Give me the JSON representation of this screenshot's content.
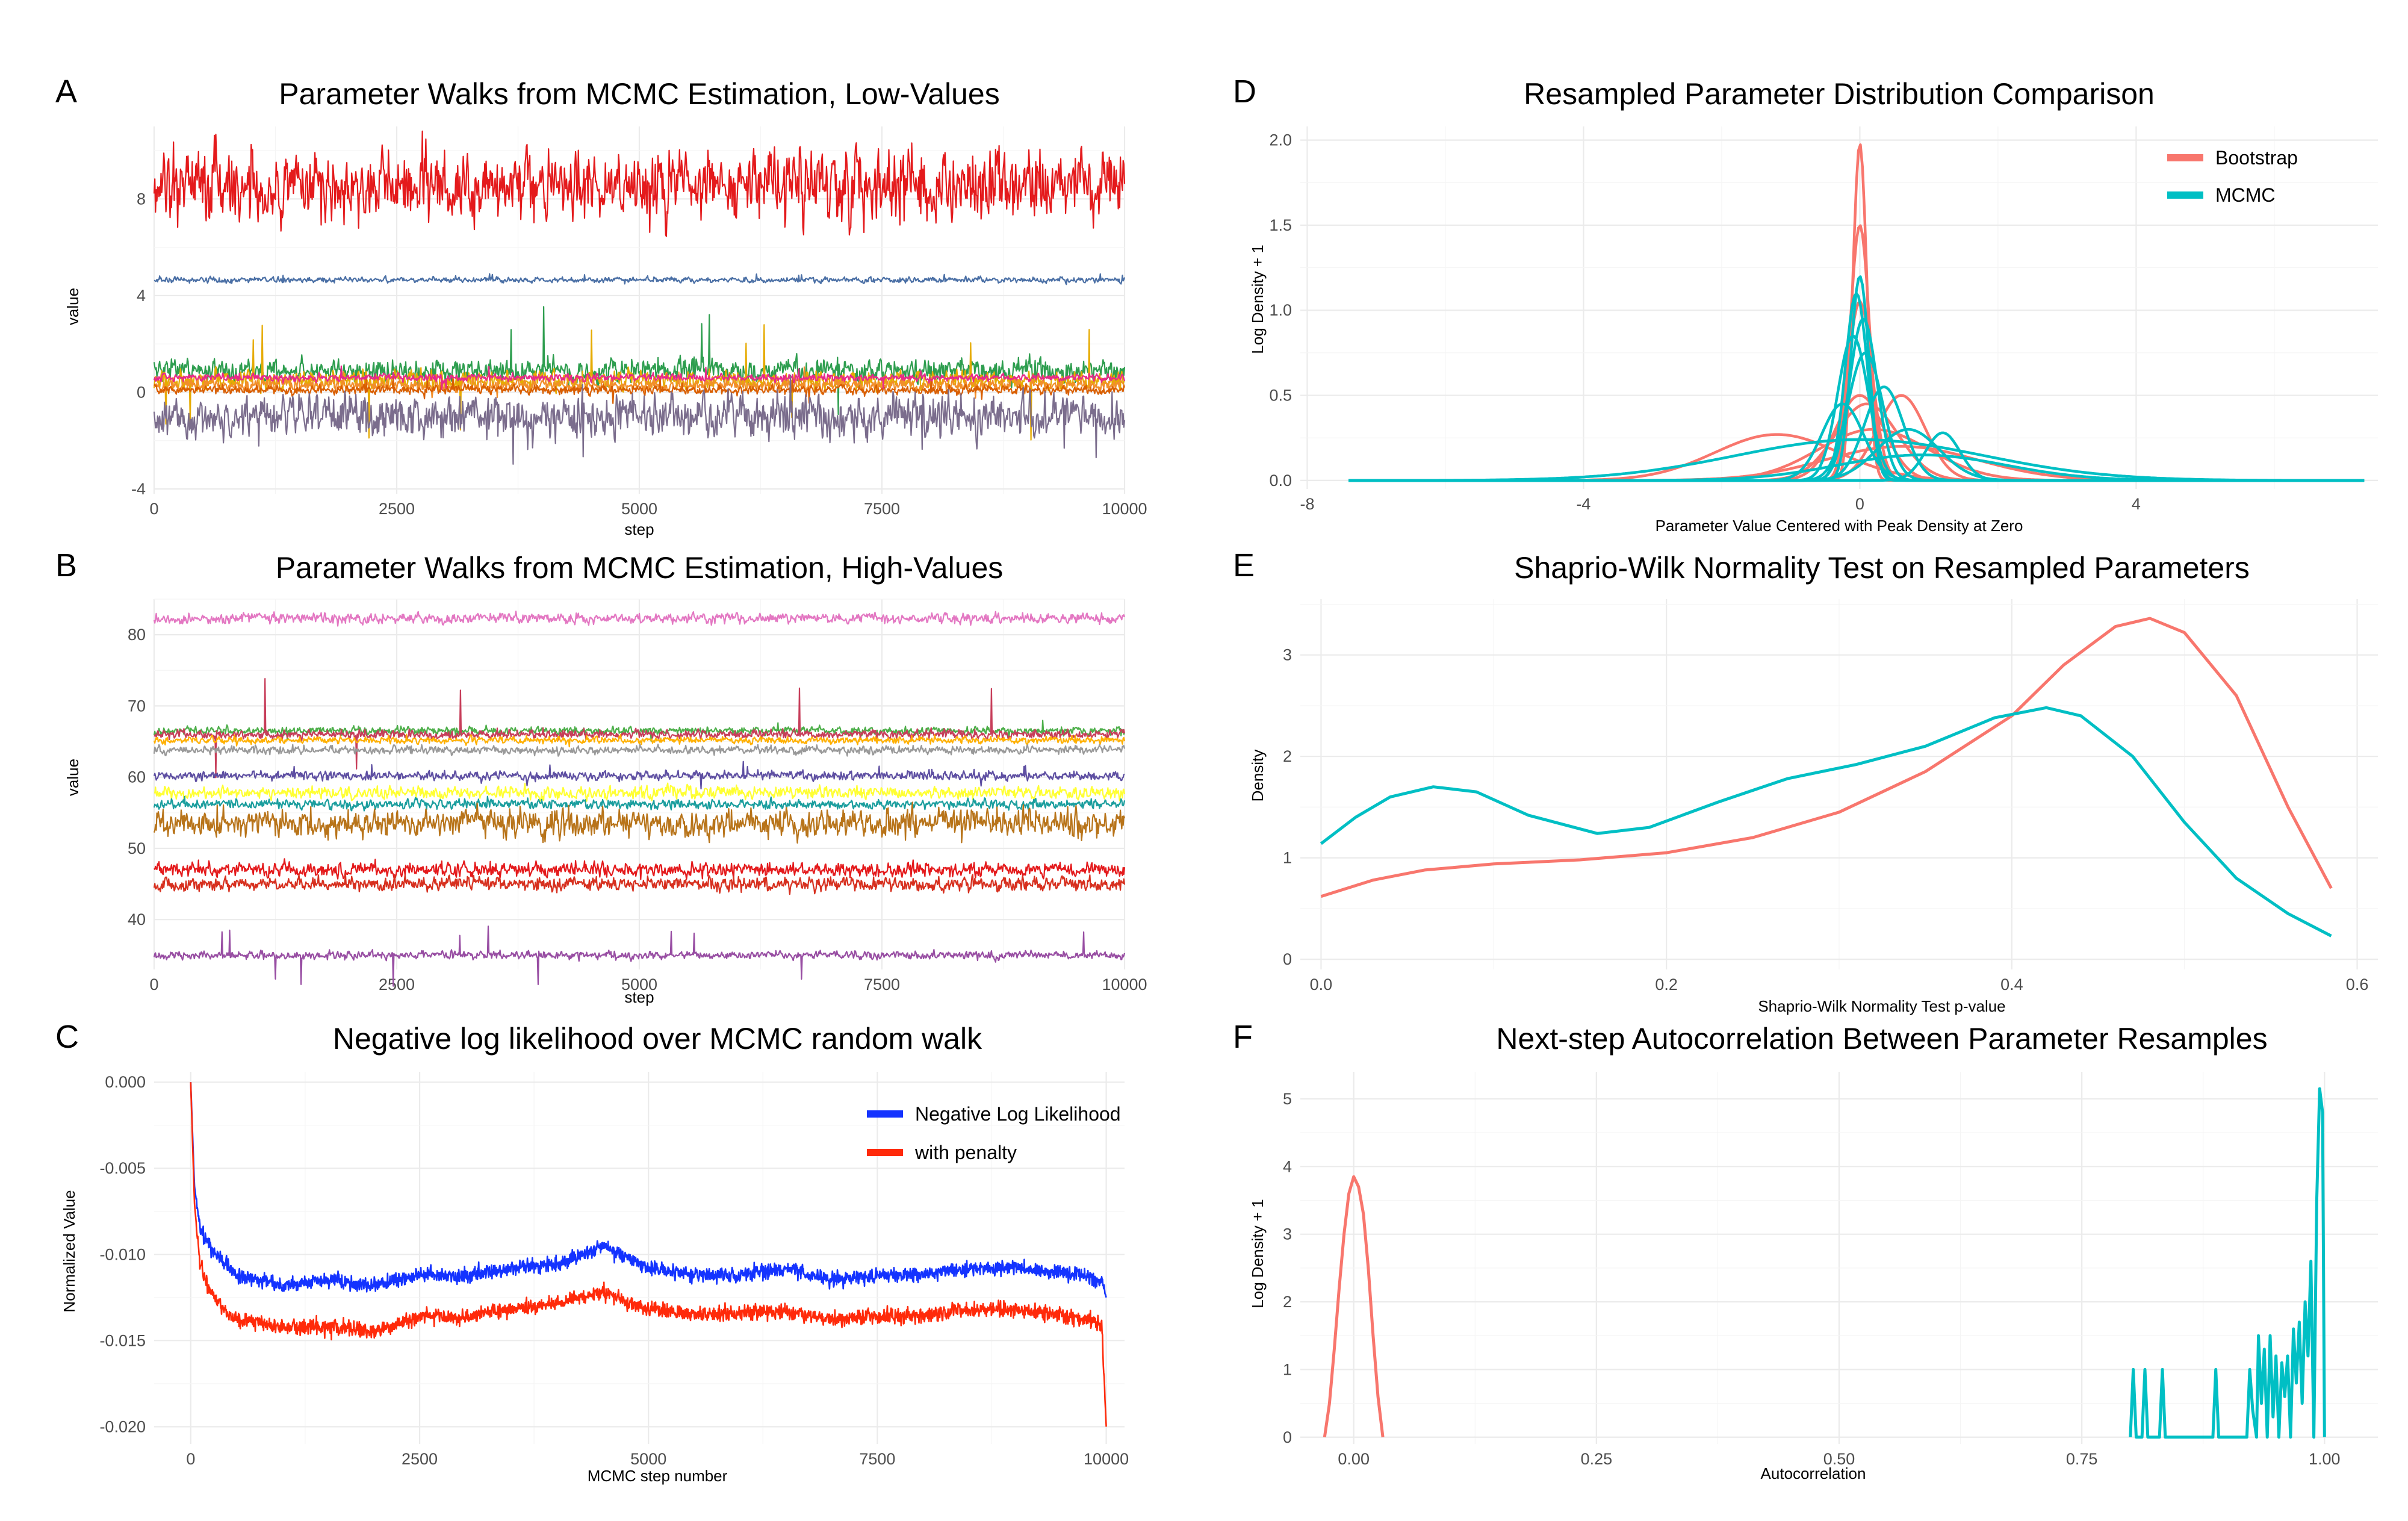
{
  "figure": {
    "panels": [
      "A",
      "B",
      "C",
      "D",
      "E",
      "F"
    ]
  },
  "chart_data": [
    {
      "id": "A",
      "panel_letter": "A",
      "type": "line",
      "title": "Parameter Walks from MCMC Estimation, Low-Values",
      "xlabel": "step",
      "ylabel": "value",
      "xlim": [
        0,
        10000
      ],
      "ylim": [
        -4.2,
        11
      ],
      "xticks": [
        0,
        2500,
        5000,
        7500,
        10000
      ],
      "xtick_labels": [
        "0",
        "2500",
        "5000",
        "7500",
        "10000"
      ],
      "yticks": [
        -4,
        0,
        4,
        8
      ],
      "ytick_labels": [
        "-4",
        "0",
        "4",
        "8"
      ],
      "grid": true,
      "legend": "none",
      "series": [
        {
          "color": "#e41a1c",
          "mean": 8.5,
          "noise": 0.9,
          "spike": 1.8
        },
        {
          "color": "#4a6fa5",
          "mean": 4.65,
          "noise": 0.07,
          "spike": 0.25
        },
        {
          "color": "#2e9e4f",
          "mean": 0.9,
          "noise": 0.3,
          "spike": 2.8
        },
        {
          "color": "#e6ab02",
          "mean": 0.5,
          "noise": 0.25,
          "spike": 2.5
        },
        {
          "color": "#f28e2b",
          "mean": 0.3,
          "noise": 0.15,
          "spike": 0.8
        },
        {
          "color": "#d95f02",
          "mean": 0.1,
          "noise": 0.12,
          "spike": 0.6
        },
        {
          "color": "#e7298a",
          "mean": 0.6,
          "noise": 0.1,
          "spike": 0.5
        },
        {
          "color": "#7b6d8d",
          "mean": -1.0,
          "noise": 0.55,
          "spike": 2.0
        }
      ]
    },
    {
      "id": "B",
      "panel_letter": "B",
      "type": "line",
      "title": "Parameter Walks from MCMC Estimation, High-Values",
      "xlabel": "step",
      "ylabel": "value",
      "xlim": [
        0,
        10000
      ],
      "ylim": [
        33,
        85
      ],
      "xticks": [
        0,
        2500,
        5000,
        7500,
        10000
      ],
      "xtick_labels": [
        "0",
        "2500",
        "5000",
        "7500",
        "10000"
      ],
      "yticks": [
        40,
        50,
        60,
        70,
        80
      ],
      "ytick_labels": [
        "40",
        "50",
        "60",
        "70",
        "80"
      ],
      "grid": true,
      "legend": "none",
      "series": [
        {
          "color": "#e377c2",
          "mean": 82.3,
          "noise": 0.45,
          "spike": 0.8
        },
        {
          "color": "#4daf4a",
          "mean": 66.5,
          "noise": 0.35,
          "spike": 1.5
        },
        {
          "color": "#c73e5a",
          "mean": 66.0,
          "noise": 0.4,
          "spike": 8.0
        },
        {
          "color": "#ffb000",
          "mean": 65.2,
          "noise": 0.3,
          "spike": 1.0
        },
        {
          "color": "#999999",
          "mean": 63.8,
          "noise": 0.35,
          "spike": 0.8
        },
        {
          "color": "#5e4fa2",
          "mean": 60.2,
          "noise": 0.4,
          "spike": 2.0
        },
        {
          "color": "#ffff33",
          "mean": 57.8,
          "noise": 0.55,
          "spike": 1.0
        },
        {
          "color": "#1b9e9e",
          "mean": 56.2,
          "noise": 0.4,
          "spike": 1.2
        },
        {
          "color": "#b8741a",
          "mean": 53.5,
          "noise": 1.2,
          "spike": 3.0
        },
        {
          "color": "#e41a1c",
          "mean": 47.0,
          "noise": 0.6,
          "spike": 1.5
        },
        {
          "color": "#d7301f",
          "mean": 45.0,
          "noise": 0.6,
          "spike": 1.5
        },
        {
          "color": "#984ea3",
          "mean": 35.0,
          "noise": 0.35,
          "spike": 4.5
        }
      ]
    },
    {
      "id": "C",
      "panel_letter": "C",
      "type": "line",
      "title": "Negative log likelihood over MCMC random walk",
      "xlabel": "MCMC step number",
      "ylabel": "Normalized Value",
      "xlim": [
        -400,
        10200
      ],
      "ylim": [
        -0.021,
        0.0006
      ],
      "xticks": [
        0,
        2500,
        5000,
        7500,
        10000
      ],
      "xtick_labels": [
        "0",
        "2500",
        "5000",
        "7500",
        "10000"
      ],
      "yticks": [
        0,
        -0.005,
        -0.01,
        -0.015,
        -0.02
      ],
      "ytick_labels": [
        "0.000",
        "-0.005",
        "-0.010",
        "-0.015",
        "-0.020"
      ],
      "grid": true,
      "legend": "top-right",
      "series": [
        {
          "name": "Negative Log Likelihood",
          "color": "#1433ff",
          "points": [
            [
              0,
              0
            ],
            [
              40,
              -0.006
            ],
            [
              100,
              -0.0085
            ],
            [
              200,
              -0.0095
            ],
            [
              500,
              -0.0112
            ],
            [
              1000,
              -0.0118
            ],
            [
              1500,
              -0.0115
            ],
            [
              2000,
              -0.0118
            ],
            [
              2500,
              -0.0112
            ],
            [
              3000,
              -0.0113
            ],
            [
              3500,
              -0.0108
            ],
            [
              4000,
              -0.0106
            ],
            [
              4500,
              -0.0095
            ],
            [
              5000,
              -0.0108
            ],
            [
              5500,
              -0.0112
            ],
            [
              6000,
              -0.0112
            ],
            [
              6500,
              -0.0108
            ],
            [
              7000,
              -0.0115
            ],
            [
              7500,
              -0.0112
            ],
            [
              8000,
              -0.0112
            ],
            [
              8500,
              -0.0108
            ],
            [
              9000,
              -0.0108
            ],
            [
              9500,
              -0.011
            ],
            [
              9950,
              -0.0115
            ],
            [
              10000,
              -0.0125
            ]
          ]
        },
        {
          "name": "with penalty",
          "color": "#ff2a0a",
          "points": [
            [
              0,
              0
            ],
            [
              40,
              -0.007
            ],
            [
              100,
              -0.0105
            ],
            [
              200,
              -0.0122
            ],
            [
              500,
              -0.0138
            ],
            [
              1000,
              -0.0142
            ],
            [
              1500,
              -0.0142
            ],
            [
              2000,
              -0.0145
            ],
            [
              2500,
              -0.0136
            ],
            [
              3000,
              -0.0136
            ],
            [
              3500,
              -0.0132
            ],
            [
              4000,
              -0.0128
            ],
            [
              4500,
              -0.0122
            ],
            [
              5000,
              -0.0132
            ],
            [
              5500,
              -0.0135
            ],
            [
              6000,
              -0.0134
            ],
            [
              6500,
              -0.0133
            ],
            [
              7000,
              -0.0138
            ],
            [
              7500,
              -0.0136
            ],
            [
              8000,
              -0.0135
            ],
            [
              8500,
              -0.0132
            ],
            [
              9000,
              -0.0132
            ],
            [
              9500,
              -0.0135
            ],
            [
              9950,
              -0.014
            ],
            [
              10000,
              -0.02
            ]
          ]
        }
      ]
    },
    {
      "id": "D",
      "panel_letter": "D",
      "type": "line",
      "title": "Resampled Parameter Distribution Comparison",
      "xlabel": "Parameter Value Centered with Peak Density at Zero",
      "ylabel": "Log Density + 1",
      "xlim": [
        -8.1,
        7.5
      ],
      "ylim": [
        -0.05,
        2.08
      ],
      "xticks": [
        -8,
        -4,
        0,
        4
      ],
      "xtick_labels": [
        "-8",
        "-4",
        "0",
        "4"
      ],
      "yticks": [
        0,
        0.5,
        1,
        1.5,
        2
      ],
      "ytick_labels": [
        "0.0",
        "0.5",
        "1.0",
        "1.5",
        "2.0"
      ],
      "grid": true,
      "legend": "top-right",
      "legend_entries": [
        "Bootstrap",
        "MCMC"
      ],
      "series": [
        {
          "name": "Bootstrap",
          "color": "#f8766d",
          "curves": [
            {
              "peak": 1.98,
              "w": 0.1,
              "shift": 0
            },
            {
              "peak": 1.5,
              "w": 0.14,
              "shift": 0
            },
            {
              "peak": 1.05,
              "w": 0.18,
              "shift": 0
            },
            {
              "peak": 0.5,
              "w": 0.35,
              "shift": 0
            },
            {
              "peak": 0.45,
              "w": 0.45,
              "shift": 0.1
            },
            {
              "peak": 0.27,
              "w": 0.9,
              "shift": -1.2
            },
            {
              "peak": 0.5,
              "w": 0.35,
              "shift": 0.6
            },
            {
              "peak": 0.3,
              "w": 0.8,
              "shift": 0.2
            },
            {
              "peak": 0.2,
              "w": 1.1,
              "shift": 0.6
            }
          ]
        },
        {
          "name": "MCMC",
          "color": "#00bfc4",
          "curves": [
            {
              "peak": 1.2,
              "w": 0.13,
              "shift": 0
            },
            {
              "peak": 1.1,
              "w": 0.16,
              "shift": -0.05
            },
            {
              "peak": 0.95,
              "w": 0.2,
              "shift": 0.05
            },
            {
              "peak": 0.85,
              "w": 0.22,
              "shift": -0.1
            },
            {
              "peak": 0.75,
              "w": 0.25,
              "shift": 0.08
            },
            {
              "peak": 0.55,
              "w": 0.28,
              "shift": 0.35
            },
            {
              "peak": 0.45,
              "w": 0.3,
              "shift": -0.25
            },
            {
              "peak": 0.28,
              "w": 0.25,
              "shift": 1.2
            },
            {
              "peak": 0.3,
              "w": 0.45,
              "shift": 0.7
            },
            {
              "peak": 0.24,
              "w": 1.8,
              "shift": 0
            },
            {
              "peak": 0.15,
              "w": 1.2,
              "shift": 0.9
            }
          ]
        }
      ]
    },
    {
      "id": "E",
      "panel_letter": "E",
      "type": "line",
      "title": "Shaprio-Wilk Normality Test on Resampled Parameters",
      "xlabel": "Shaprio-Wilk Normality Test p-value",
      "ylabel": "Density",
      "xlim": [
        -0.012,
        0.612
      ],
      "ylim": [
        -0.1,
        3.55
      ],
      "xticks": [
        0,
        0.2,
        0.4,
        0.6
      ],
      "xtick_labels": [
        "0.0",
        "0.2",
        "0.4",
        "0.6"
      ],
      "yticks": [
        0,
        1,
        2,
        3
      ],
      "ytick_labels": [
        "0",
        "1",
        "2",
        "3"
      ],
      "grid": true,
      "legend": "none",
      "series": [
        {
          "name": "Bootstrap",
          "color": "#f8766d",
          "points": [
            [
              0,
              0.62
            ],
            [
              0.03,
              0.78
            ],
            [
              0.06,
              0.88
            ],
            [
              0.1,
              0.94
            ],
            [
              0.15,
              0.98
            ],
            [
              0.2,
              1.05
            ],
            [
              0.25,
              1.2
            ],
            [
              0.3,
              1.45
            ],
            [
              0.35,
              1.85
            ],
            [
              0.4,
              2.4
            ],
            [
              0.43,
              2.9
            ],
            [
              0.46,
              3.28
            ],
            [
              0.48,
              3.36
            ],
            [
              0.5,
              3.22
            ],
            [
              0.53,
              2.6
            ],
            [
              0.56,
              1.5
            ],
            [
              0.585,
              0.7
            ]
          ]
        },
        {
          "name": "MCMC",
          "color": "#00bfc4",
          "points": [
            [
              0,
              1.14
            ],
            [
              0.02,
              1.4
            ],
            [
              0.04,
              1.6
            ],
            [
              0.065,
              1.7
            ],
            [
              0.09,
              1.65
            ],
            [
              0.12,
              1.42
            ],
            [
              0.16,
              1.24
            ],
            [
              0.19,
              1.3
            ],
            [
              0.23,
              1.55
            ],
            [
              0.27,
              1.78
            ],
            [
              0.31,
              1.92
            ],
            [
              0.35,
              2.1
            ],
            [
              0.39,
              2.38
            ],
            [
              0.42,
              2.48
            ],
            [
              0.44,
              2.4
            ],
            [
              0.47,
              2.0
            ],
            [
              0.5,
              1.35
            ],
            [
              0.53,
              0.8
            ],
            [
              0.56,
              0.45
            ],
            [
              0.585,
              0.23
            ]
          ]
        }
      ]
    },
    {
      "id": "F",
      "panel_letter": "F",
      "type": "line",
      "title": "Next-step Autocorrelation Between Parameter Resamples",
      "xlabel": "Autocorrelation",
      "ylabel": "Log Density + 1",
      "xlim": [
        -0.055,
        1.055
      ],
      "ylim": [
        -0.1,
        5.4
      ],
      "xticks": [
        0,
        0.25,
        0.5,
        0.75,
        1
      ],
      "xtick_labels": [
        "0.00",
        "0.25",
        "0.50",
        "0.75",
        "1.00"
      ],
      "yticks": [
        0,
        1,
        2,
        3,
        4,
        5
      ],
      "ytick_labels": [
        "0",
        "1",
        "2",
        "3",
        "4",
        "5"
      ],
      "grid": true,
      "legend": "none",
      "series": [
        {
          "name": "Bootstrap",
          "color": "#f8766d",
          "points": [
            [
              -0.03,
              0
            ],
            [
              -0.025,
              0.5
            ],
            [
              -0.02,
              1.3
            ],
            [
              -0.015,
              2.2
            ],
            [
              -0.01,
              3.0
            ],
            [
              -0.005,
              3.6
            ],
            [
              0,
              3.85
            ],
            [
              0.005,
              3.7
            ],
            [
              0.01,
              3.3
            ],
            [
              0.015,
              2.5
            ],
            [
              0.02,
              1.5
            ],
            [
              0.025,
              0.6
            ],
            [
              0.03,
              0
            ]
          ]
        },
        {
          "name": "MCMC",
          "color": "#00bfc4",
          "points": [
            [
              0.8,
              0
            ],
            [
              0.803,
              1.0
            ],
            [
              0.806,
              0
            ],
            [
              0.812,
              0
            ],
            [
              0.815,
              1.0
            ],
            [
              0.818,
              0
            ],
            [
              0.83,
              0
            ],
            [
              0.833,
              1.0
            ],
            [
              0.836,
              0
            ],
            [
              0.885,
              0
            ],
            [
              0.888,
              1.0
            ],
            [
              0.891,
              0
            ],
            [
              0.92,
              0
            ],
            [
              0.923,
              1.0
            ],
            [
              0.926,
              0.4
            ],
            [
              0.93,
              0
            ],
            [
              0.932,
              1.5
            ],
            [
              0.935,
              0.5
            ],
            [
              0.938,
              1.3
            ],
            [
              0.941,
              0
            ],
            [
              0.944,
              1.5
            ],
            [
              0.947,
              0.3
            ],
            [
              0.95,
              1.2
            ],
            [
              0.953,
              0
            ],
            [
              0.956,
              1.1
            ],
            [
              0.959,
              0.6
            ],
            [
              0.962,
              1.2
            ],
            [
              0.965,
              0
            ],
            [
              0.968,
              1.6
            ],
            [
              0.971,
              0.8
            ],
            [
              0.974,
              1.7
            ],
            [
              0.977,
              0.5
            ],
            [
              0.98,
              2.0
            ],
            [
              0.983,
              1.2
            ],
            [
              0.986,
              2.6
            ],
            [
              0.989,
              0
            ],
            [
              0.992,
              3.5
            ],
            [
              0.995,
              5.15
            ],
            [
              0.998,
              4.8
            ],
            [
              1.0,
              0
            ]
          ]
        }
      ]
    }
  ]
}
